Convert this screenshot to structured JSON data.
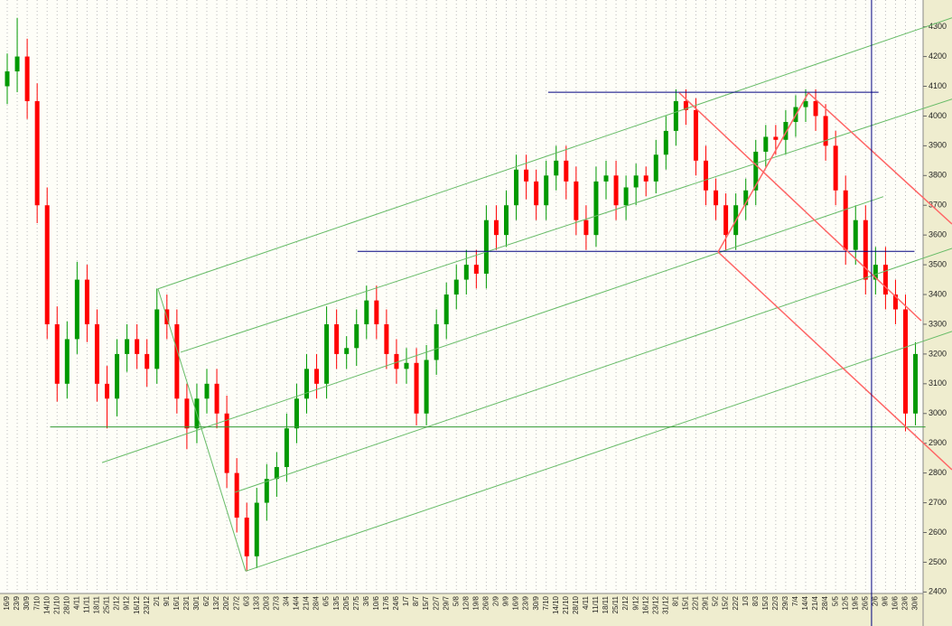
{
  "chart_data": {
    "type": "candlestick",
    "categories": [
      "16/9",
      "23/9",
      "30/9",
      "7/10",
      "14/10",
      "21/10",
      "28/10",
      "4/11",
      "11/11",
      "18/11",
      "25/11",
      "2/12",
      "9/12",
      "16/12",
      "23/12",
      "2/1",
      "9/1",
      "16/1",
      "23/1",
      "30/1",
      "6/2",
      "13/2",
      "20/2",
      "27/2",
      "6/3",
      "13/3",
      "20/3",
      "27/3",
      "3/4",
      "14/4",
      "21/4",
      "28/4",
      "6/5",
      "13/5",
      "20/5",
      "27/5",
      "3/6",
      "10/6",
      "17/6",
      "24/6",
      "1/7",
      "8/7",
      "15/7",
      "22/7",
      "29/7",
      "5/8",
      "12/8",
      "19/8",
      "26/8",
      "2/9",
      "9/9",
      "16/9",
      "23/9",
      "30/9",
      "7/10",
      "14/10",
      "21/10",
      "28/10",
      "4/11",
      "11/11",
      "18/11",
      "25/11",
      "2/12",
      "9/12",
      "16/12",
      "23/12",
      "31/12",
      "8/1",
      "15/1",
      "22/1",
      "29/1",
      "5/2",
      "15/2",
      "22/2",
      "1/3",
      "8/3",
      "15/3",
      "22/3",
      "29/3",
      "7/4",
      "14/4",
      "21/4",
      "28/4",
      "5/5",
      "12/5",
      "19/5",
      "26/5",
      "2/6",
      "9/6",
      "16/6",
      "23/6",
      "30/6"
    ],
    "open": [
      4100,
      4150,
      4200,
      4050,
      3700,
      3300,
      3100,
      3250,
      3450,
      3300,
      3100,
      3050,
      3200,
      3250,
      3200,
      3150,
      3350,
      3300,
      3050,
      2950,
      3050,
      3100,
      3000,
      2800,
      2650,
      2520,
      2700,
      2780,
      2820,
      2950,
      3050,
      3150,
      3100,
      3300,
      3200,
      3220,
      3300,
      3380,
      3300,
      3200,
      3150,
      3170,
      3000,
      3180,
      3300,
      3400,
      3450,
      3500,
      3470,
      3650,
      3600,
      3700,
      3820,
      3780,
      3700,
      3800,
      3850,
      3780,
      3650,
      3600,
      3780,
      3800,
      3700,
      3760,
      3800,
      3780,
      3870,
      3950,
      4050,
      4020,
      3850,
      3750,
      3700,
      3600,
      3700,
      3750,
      3880,
      3930,
      3920,
      3980,
      4030,
      4050,
      4000,
      3900,
      3750,
      3550,
      3650,
      3450,
      3500,
      3400,
      3350,
      3000
    ],
    "high": [
      4210,
      4330,
      4260,
      4110,
      3760,
      3360,
      3310,
      3510,
      3500,
      3350,
      3160,
      3250,
      3300,
      3300,
      3250,
      3420,
      3400,
      3350,
      3100,
      3100,
      3150,
      3150,
      3060,
      2850,
      2700,
      2750,
      2830,
      2870,
      3000,
      3100,
      3200,
      3200,
      3360,
      3350,
      3260,
      3350,
      3430,
      3430,
      3350,
      3250,
      3220,
      3220,
      3230,
      3350,
      3440,
      3500,
      3550,
      3550,
      3700,
      3700,
      3750,
      3870,
      3870,
      3820,
      3850,
      3900,
      3900,
      3830,
      3700,
      3830,
      3850,
      3850,
      3800,
      3840,
      3830,
      3920,
      4000,
      4090,
      4090,
      4060,
      3900,
      3790,
      3740,
      3740,
      3790,
      3920,
      3970,
      3970,
      4020,
      4070,
      4090,
      4090,
      4040,
      3950,
      3800,
      3700,
      3700,
      3560,
      3560,
      3450,
      3400,
      3240
    ],
    "low": [
      4040,
      4080,
      3990,
      3640,
      3250,
      3040,
      3050,
      3200,
      3240,
      3040,
      2950,
      2990,
      3140,
      3150,
      3090,
      3100,
      3250,
      3000,
      2880,
      2900,
      3000,
      2950,
      2750,
      2600,
      2470,
      2480,
      2640,
      2720,
      2770,
      2900,
      3000,
      3050,
      3050,
      3150,
      3150,
      3160,
      3250,
      3250,
      3150,
      3100,
      3100,
      2960,
      2960,
      3130,
      3250,
      3350,
      3400,
      3420,
      3420,
      3550,
      3560,
      3650,
      3720,
      3650,
      3650,
      3750,
      3720,
      3600,
      3550,
      3560,
      3720,
      3650,
      3650,
      3700,
      3730,
      3740,
      3820,
      3900,
      3970,
      3800,
      3700,
      3650,
      3550,
      3550,
      3650,
      3700,
      3830,
      3870,
      3870,
      3930,
      3980,
      3950,
      3850,
      3700,
      3500,
      3500,
      3400,
      3400,
      3350,
      3300,
      2940,
      2960
    ],
    "close": [
      4150,
      4200,
      4050,
      3700,
      3300,
      3100,
      3250,
      3450,
      3300,
      3100,
      3050,
      3200,
      3250,
      3200,
      3150,
      3350,
      3300,
      3050,
      2950,
      3050,
      3100,
      3000,
      2800,
      2650,
      2520,
      2700,
      2780,
      2820,
      2950,
      3050,
      3150,
      3100,
      3300,
      3200,
      3220,
      3300,
      3380,
      3300,
      3200,
      3150,
      3170,
      3000,
      3180,
      3300,
      3400,
      3450,
      3500,
      3470,
      3650,
      3600,
      3700,
      3820,
      3780,
      3700,
      3800,
      3850,
      3780,
      3650,
      3600,
      3780,
      3800,
      3700,
      3760,
      3800,
      3780,
      3870,
      3950,
      4050,
      4020,
      3850,
      3750,
      3700,
      3600,
      3700,
      3750,
      3880,
      3930,
      3920,
      3980,
      4030,
      4050,
      4000,
      3900,
      3750,
      3550,
      3650,
      3450,
      3500,
      3400,
      3350,
      3000,
      3200
    ],
    "up_color": "#009900",
    "down_color": "#ff0000",
    "ylim": [
      2395,
      4390
    ],
    "yticks": [
      2400,
      2500,
      2600,
      2700,
      2800,
      2900,
      3000,
      3100,
      3200,
      3300,
      3400,
      3500,
      3600,
      3700,
      3800,
      3900,
      4000,
      4100,
      4200,
      4300
    ],
    "grid": "x",
    "lines": [
      {
        "x": [
          15.11,
          94.66
        ],
        "y": [
          3419,
          4330
        ],
        "color": "#66bb66"
      },
      {
        "x": [
          17.38,
          94.66
        ],
        "y": [
          3206,
          4057
        ],
        "color": "#66bb66"
      },
      {
        "x": [
          9.5,
          87.78
        ],
        "y": [
          2835,
          3729
        ],
        "color": "#66bb66"
      },
      {
        "x": [
          22.81,
          94.66
        ],
        "y": [
          2735,
          3555
        ],
        "color": "#66bb66"
      },
      {
        "x": [
          23.89,
          94.66
        ],
        "y": [
          2470,
          3276
        ],
        "color": "#66bb66"
      },
      {
        "x": [
          15.11,
          23.89
        ],
        "y": [
          3419,
          2470
        ],
        "color": "#66bb66"
      },
      {
        "x": [
          4.3,
          92
        ],
        "y": [
          2955,
          2955
        ],
        "color": "#339933"
      },
      {
        "x": [
          54.2,
          87.3
        ],
        "y": [
          4080,
          4080
        ],
        "color": "#000080"
      },
      {
        "x": [
          35.1,
          90.9
        ],
        "y": [
          3545,
          3545
        ],
        "color": "#000080"
      },
      {
        "x": [
          67.33,
          91.58
        ],
        "y": [
          4078,
          3312
        ],
        "color": "#ff6666"
      },
      {
        "x": [
          80.27,
          94.66
        ],
        "y": [
          4078,
          3637
        ],
        "color": "#ff6666"
      },
      {
        "x": [
          71.22,
          94.66
        ],
        "y": [
          3543,
          2811
        ],
        "color": "#ff6666"
      },
      {
        "x": [
          71.22,
          80.27
        ],
        "y": [
          3543,
          4078
        ],
        "color": "#ff6666"
      }
    ],
    "vlines": [
      {
        "x": 86.6,
        "color": "#000080"
      }
    ]
  }
}
